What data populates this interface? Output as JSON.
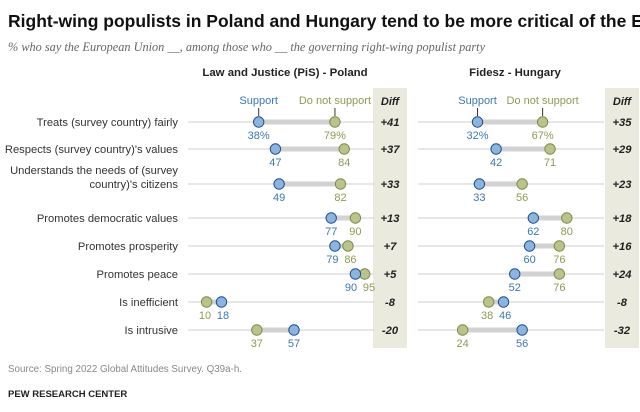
{
  "title": "Right-wing populists in Poland and Hungary tend to be more critical of the EU",
  "subtitle": "% who say the European Union __, among those who __ the governing right-wing populist party",
  "legend": {
    "support": "Support",
    "not_support": "Do not support"
  },
  "diff_label": "Diff",
  "source": "Source: Spring 2022 Global Attitudes Survey. Q39a-h.",
  "org": "PEW RESEARCH CENTER",
  "colors": {
    "support": "#8cb4e0",
    "support_stroke": "#1c4f8c",
    "support_text": "#3a78b5",
    "not_support": "#b8c48a",
    "not_support_stroke": "#7d8a47",
    "not_support_text": "#8f9a50",
    "connector": "#d2d2d2",
    "axis": "#cfcfcf",
    "diff_band": "#ebeadf"
  },
  "chart_data": [
    {
      "type": "dot_plot",
      "title": "Law and Justice (PiS) - Poland",
      "series": [
        "Support",
        "Do not support"
      ],
      "rows": [
        {
          "label": "Treats (survey country) fairly",
          "support": "38%",
          "not_support": "79%",
          "diff": "+41"
        },
        {
          "label": "Respects (survey country)'s values",
          "support": "47",
          "not_support": "84",
          "diff": "+37"
        },
        {
          "label": "Understands the needs of (survey country)'s citizens",
          "label_line1": "Understands the needs of (survey",
          "label_line2": "country)'s citizens",
          "support": "49",
          "not_support": "82",
          "diff": "+33"
        },
        {
          "label": "Promotes democratic values",
          "support": "77",
          "not_support": "90",
          "diff": "+13"
        },
        {
          "label": "Promotes prosperity",
          "support": "79",
          "not_support": "86",
          "diff": "+7"
        },
        {
          "label": "Promotes peace",
          "support": "90",
          "not_support": "95",
          "diff": "+5"
        },
        {
          "label": "Is inefficient",
          "support": "18",
          "not_support": "10",
          "diff": "-8"
        },
        {
          "label": "Is intrusive",
          "support": "57",
          "not_support": "37",
          "diff": "-20"
        }
      ]
    },
    {
      "type": "dot_plot",
      "title": "Fidesz - Hungary",
      "series": [
        "Support",
        "Do not support"
      ],
      "rows": [
        {
          "label": "Treats (survey country) fairly",
          "support": "32%",
          "not_support": "67%",
          "diff": "+35"
        },
        {
          "label": "Respects (survey country)'s values",
          "support": "42",
          "not_support": "71",
          "diff": "+29"
        },
        {
          "label": "Understands the needs of (survey country)'s citizens",
          "support": "33",
          "not_support": "56",
          "diff": "+23"
        },
        {
          "label": "Promotes democratic values",
          "support": "62",
          "not_support": "80",
          "diff": "+18"
        },
        {
          "label": "Promotes prosperity",
          "support": "60",
          "not_support": "76",
          "diff": "+16"
        },
        {
          "label": "Promotes peace",
          "support": "52",
          "not_support": "76",
          "diff": "+24"
        },
        {
          "label": "Is inefficient",
          "support": "46",
          "not_support": "38",
          "diff": "-8"
        },
        {
          "label": "Is intrusive",
          "support": "56",
          "not_support": "24",
          "diff": "-32"
        }
      ]
    }
  ]
}
